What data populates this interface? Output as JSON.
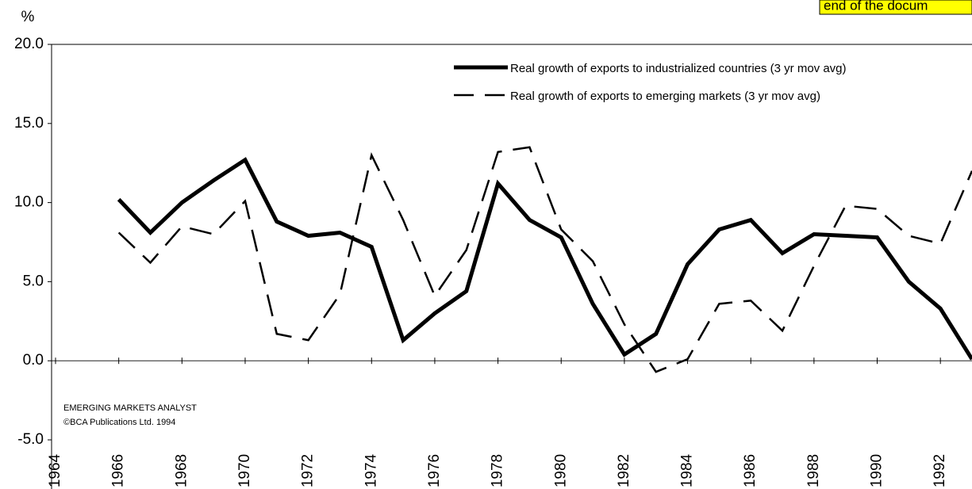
{
  "chart_data": {
    "type": "line",
    "y_label": "%",
    "annotation": "end of the docum",
    "notes": [
      "EMERGING MARKETS ANALYST",
      "©BCA Publications Ltd. 1994"
    ],
    "x": [
      1966,
      1967,
      1968,
      1969,
      1970,
      1971,
      1972,
      1973,
      1974,
      1975,
      1976,
      1977,
      1978,
      1979,
      1980,
      1981,
      1982,
      1983,
      1984,
      1985,
      1986,
      1987,
      1988,
      1989,
      1990,
      1991,
      1992,
      1993
    ],
    "series": [
      {
        "name": "Real growth of exports to industrialized countries (3 yr mov avg)",
        "color": "#000000",
        "dashed": false,
        "values": [
          10.2,
          8.1,
          10.0,
          11.4,
          12.7,
          8.8,
          7.9,
          8.1,
          7.2,
          1.3,
          3.0,
          4.4,
          11.2,
          8.9,
          7.8,
          3.6,
          0.4,
          1.7,
          6.1,
          8.3,
          8.9,
          6.8,
          8.0,
          7.9,
          7.8,
          5.0,
          3.3,
          0.1
        ]
      },
      {
        "name": "Real growth of exports to emerging markets (3 yr mov avg)",
        "color": "#000000",
        "dashed": true,
        "values": [
          8.1,
          6.2,
          8.5,
          8.0,
          10.1,
          1.7,
          1.3,
          4.2,
          13.0,
          8.9,
          4.1,
          7.0,
          13.2,
          13.5,
          8.3,
          6.3,
          2.3,
          -0.7,
          0.1,
          3.6,
          3.8,
          1.9,
          6.0,
          9.8,
          9.6,
          7.9,
          7.4,
          12.0
        ]
      }
    ],
    "xlim": [
      1964,
      1993
    ],
    "xticks": [
      1964,
      1966,
      1968,
      1970,
      1972,
      1974,
      1976,
      1978,
      1980,
      1982,
      1984,
      1986,
      1988,
      1990,
      1992
    ],
    "ylim": [
      -5,
      20
    ],
    "yticks": [
      {
        "value": -5,
        "label": "-5.0"
      },
      {
        "value": 0,
        "label": "0.0"
      },
      {
        "value": 5,
        "label": "5.0"
      },
      {
        "value": 10,
        "label": "10.0"
      },
      {
        "value": 15,
        "label": "15.0"
      },
      {
        "value": 20,
        "label": "20.0"
      }
    ]
  }
}
